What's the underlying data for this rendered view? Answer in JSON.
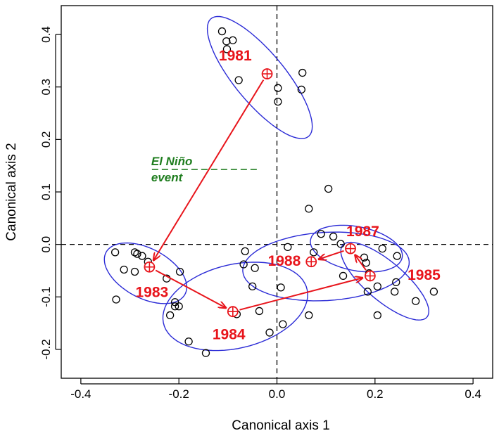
{
  "chart_data": {
    "type": "scatter",
    "xlabel": "Canonical axis 1",
    "ylabel": "Canonical axis 2",
    "xlim": [
      -0.44,
      0.44
    ],
    "ylim": [
      -0.255,
      0.455
    ],
    "xticks": [
      -0.4,
      -0.2,
      0.0,
      0.2,
      0.4
    ],
    "xtick_labels": [
      "-0.4",
      "-0.2",
      "0.0",
      "0.2",
      "0.4"
    ],
    "yticks": [
      -0.2,
      -0.1,
      0.0,
      0.1,
      0.2,
      0.3,
      0.4
    ],
    "ytick_labels": [
      "-0.2",
      "-0.1",
      "0.0",
      "0.1",
      "0.2",
      "0.3",
      "0.4"
    ],
    "grid": false,
    "reference_lines": [
      {
        "axis": "x",
        "value": 0,
        "style": "dashed"
      },
      {
        "axis": "y",
        "value": 0,
        "style": "dashed"
      }
    ],
    "annotation": {
      "lines": [
        "El Niño",
        "event"
      ],
      "color": "#1e7d1e",
      "line_y": 0.143,
      "line_x": [
        -0.255,
        -0.04
      ]
    },
    "colors": {
      "points": "#000000",
      "ellipses": "#2b2bd6",
      "centroids": "#e8141b",
      "arrows": "#e8141b"
    },
    "points": [
      {
        "x": -0.112,
        "y": 0.406
      },
      {
        "x": -0.103,
        "y": 0.387
      },
      {
        "x": -0.09,
        "y": 0.389
      },
      {
        "x": -0.102,
        "y": 0.372
      },
      {
        "x": -0.078,
        "y": 0.313
      },
      {
        "x": 0.002,
        "y": 0.298
      },
      {
        "x": 0.002,
        "y": 0.272
      },
      {
        "x": 0.052,
        "y": 0.327
      },
      {
        "x": 0.05,
        "y": 0.295
      },
      {
        "x": -0.33,
        "y": -0.015
      },
      {
        "x": -0.29,
        "y": -0.015
      },
      {
        "x": -0.285,
        "y": -0.018
      },
      {
        "x": -0.275,
        "y": -0.022
      },
      {
        "x": -0.312,
        "y": -0.048
      },
      {
        "x": -0.29,
        "y": -0.052
      },
      {
        "x": -0.263,
        "y": -0.033
      },
      {
        "x": -0.225,
        "y": -0.065
      },
      {
        "x": -0.198,
        "y": -0.052
      },
      {
        "x": -0.328,
        "y": -0.105
      },
      {
        "x": -0.208,
        "y": -0.11
      },
      {
        "x": -0.208,
        "y": -0.118
      },
      {
        "x": -0.218,
        "y": -0.135
      },
      {
        "x": -0.2,
        "y": -0.118
      },
      {
        "x": -0.18,
        "y": -0.185
      },
      {
        "x": -0.145,
        "y": -0.207
      },
      {
        "x": -0.082,
        "y": -0.133
      },
      {
        "x": -0.05,
        "y": -0.08
      },
      {
        "x": -0.036,
        "y": -0.127
      },
      {
        "x": -0.015,
        "y": -0.168
      },
      {
        "x": 0.008,
        "y": -0.082
      },
      {
        "x": 0.012,
        "y": -0.152
      },
      {
        "x": 0.065,
        "y": -0.135
      },
      {
        "x": -0.065,
        "y": -0.013
      },
      {
        "x": -0.068,
        "y": -0.038
      },
      {
        "x": -0.045,
        "y": -0.045
      },
      {
        "x": 0.022,
        "y": -0.005
      },
      {
        "x": 0.075,
        "y": -0.015
      },
      {
        "x": 0.09,
        "y": 0.02
      },
      {
        "x": 0.115,
        "y": 0.015
      },
      {
        "x": 0.13,
        "y": 0.001
      },
      {
        "x": 0.065,
        "y": 0.068
      },
      {
        "x": 0.105,
        "y": 0.106
      },
      {
        "x": 0.135,
        "y": -0.06
      },
      {
        "x": 0.178,
        "y": -0.025
      },
      {
        "x": 0.182,
        "y": -0.035
      },
      {
        "x": 0.188,
        "y": -0.055
      },
      {
        "x": 0.185,
        "y": -0.09
      },
      {
        "x": 0.205,
        "y": -0.08
      },
      {
        "x": 0.205,
        "y": -0.135
      },
      {
        "x": 0.215,
        "y": -0.008
      },
      {
        "x": 0.24,
        "y": -0.09
      },
      {
        "x": 0.243,
        "y": -0.072
      },
      {
        "x": 0.245,
        "y": -0.022
      },
      {
        "x": 0.283,
        "y": -0.108
      },
      {
        "x": 0.32,
        "y": -0.09
      }
    ],
    "groups": [
      {
        "label": "1981",
        "centroid": [
          -0.02,
          0.325
        ],
        "label_pos": [
          -0.085,
          0.358
        ],
        "ellipse": {
          "cx": -0.035,
          "cy": 0.318,
          "rx": 0.15,
          "ry": 0.05,
          "angle_deg": -48
        }
      },
      {
        "label": "1983",
        "centroid": [
          -0.26,
          -0.043
        ],
        "label_pos": [
          -0.255,
          -0.093
        ],
        "ellipse": {
          "cx": -0.268,
          "cy": -0.055,
          "rx": 0.09,
          "ry": 0.048,
          "angle_deg": -25
        }
      },
      {
        "label": "1984",
        "centroid": [
          -0.09,
          -0.128
        ],
        "label_pos": [
          -0.098,
          -0.173
        ],
        "ellipse": {
          "cx": -0.085,
          "cy": -0.118,
          "rx": 0.15,
          "ry": 0.08,
          "angle_deg": 12
        }
      },
      {
        "label": "1988",
        "centroid": [
          0.07,
          -0.033
        ],
        "label_pos": [
          0.015,
          -0.033
        ],
        "ellipse": {
          "cx": 0.1,
          "cy": -0.042,
          "rx": 0.17,
          "ry": 0.065,
          "angle_deg": 3
        }
      },
      {
        "label": "1987",
        "centroid": [
          0.15,
          -0.008
        ],
        "label_pos": [
          0.175,
          0.023
        ],
        "ellipse": {
          "cx": 0.162,
          "cy": -0.008,
          "rx": 0.095,
          "ry": 0.042,
          "angle_deg": -10
        }
      },
      {
        "label": "1985",
        "centroid": [
          0.19,
          -0.06
        ],
        "label_pos": [
          0.3,
          -0.06
        ],
        "ellipse": {
          "cx": 0.22,
          "cy": -0.07,
          "rx": 0.11,
          "ry": 0.038,
          "angle_deg": -38
        }
      }
    ],
    "arrows": [
      {
        "from": "1981",
        "to": "1983"
      },
      {
        "from": "1983",
        "to": "1984"
      },
      {
        "from": "1984",
        "to": "1985"
      },
      {
        "from": "1985",
        "to": "1987"
      },
      {
        "from": "1987",
        "to": "1988"
      }
    ]
  }
}
